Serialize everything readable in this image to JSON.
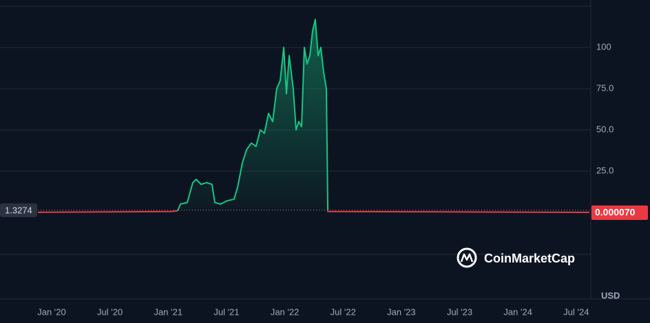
{
  "chart_data": {
    "type": "line",
    "x": [
      2019.882,
      2021.034,
      2021.081,
      2021.105,
      2021.164,
      2021.211,
      2021.24,
      2021.282,
      2021.329,
      2021.376,
      2021.4,
      2021.447,
      2021.506,
      2021.565,
      2021.595,
      2021.636,
      2021.672,
      2021.713,
      2021.754,
      2021.79,
      2021.825,
      2021.861,
      2021.896,
      2021.931,
      2021.961,
      2021.991,
      2022.014,
      2022.038,
      2022.073,
      2022.097,
      2022.12,
      2022.144,
      2022.168,
      2022.191,
      2022.215,
      2022.239,
      2022.262,
      2022.286,
      2022.309,
      2022.333,
      2022.357,
      2022.369,
      2024.613
    ],
    "values": [
      0.05,
      0.5,
      1,
      5,
      6,
      18,
      20,
      17,
      18,
      17,
      6,
      5,
      7,
      8,
      15,
      30,
      38,
      42,
      40,
      50,
      48,
      60,
      55,
      75,
      80,
      100,
      72,
      95,
      75,
      50,
      55,
      52,
      100,
      90,
      95,
      110,
      117,
      95,
      100,
      85,
      75,
      0.5,
      7e-05
    ],
    "up_color": "#16c784",
    "down_color": "#ea3943",
    "baseline": 1.3274,
    "last_price": {
      "value": 7e-05,
      "label": "0.000070"
    },
    "xlim": [
      2019.882,
      2024.625
    ],
    "xticks": [
      {
        "value": 2020.0,
        "label": "Jan '20"
      },
      {
        "value": 2020.5,
        "label": "Jul '20"
      },
      {
        "value": 2021.0,
        "label": "Jan '21"
      },
      {
        "value": 2021.5,
        "label": "Jul '21"
      },
      {
        "value": 2022.0,
        "label": "Jan '22"
      },
      {
        "value": 2022.5,
        "label": "Jul '22"
      },
      {
        "value": 2023.0,
        "label": "Jan '23"
      },
      {
        "value": 2023.5,
        "label": "Jul '23"
      },
      {
        "value": 2024.0,
        "label": "Jan '24"
      },
      {
        "value": 2024.5,
        "label": "Jul '24"
      }
    ],
    "ylim": [
      -25,
      125
    ],
    "yticks": [
      {
        "value": 25,
        "label": "25.0"
      },
      {
        "value": 50,
        "label": "50.0"
      },
      {
        "value": 75,
        "label": "75.0"
      },
      100
    ],
    "grid": true,
    "currency": "USD",
    "watermark": "CoinMarketCap"
  }
}
